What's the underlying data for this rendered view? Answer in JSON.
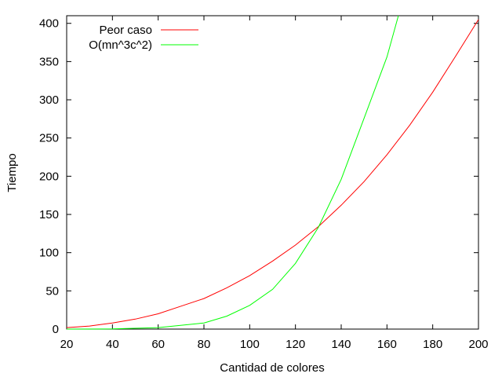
{
  "chart_data": {
    "type": "line",
    "xlabel": "Cantidad de colores",
    "ylabel": "Tiempo",
    "xlim": [
      20,
      200
    ],
    "ylim": [
      0,
      410
    ],
    "xticks": [
      20,
      40,
      60,
      80,
      100,
      120,
      140,
      160,
      180,
      200
    ],
    "yticks": [
      0,
      50,
      100,
      150,
      200,
      250,
      300,
      350,
      400
    ],
    "grid": false,
    "legend_position": "top-left",
    "series": [
      {
        "name": "Peor caso",
        "color": "#ff0000",
        "x": [
          20,
          30,
          40,
          50,
          60,
          70,
          80,
          90,
          100,
          110,
          120,
          130,
          140,
          150,
          160,
          170,
          180,
          190,
          200
        ],
        "y": [
          2,
          4,
          8,
          13,
          20,
          30,
          40,
          54,
          70,
          89,
          110,
          134,
          162,
          193,
          228,
          267,
          310,
          357,
          405
        ]
      },
      {
        "name": "O(mn^3c^2)",
        "color": "#00ff00",
        "x": [
          20,
          40,
          60,
          80,
          90,
          100,
          110,
          120,
          130,
          140,
          150,
          160,
          165
        ],
        "y": [
          0,
          0.2,
          2,
          8,
          17,
          31,
          52,
          86,
          133,
          196,
          276,
          356,
          410
        ]
      }
    ]
  }
}
